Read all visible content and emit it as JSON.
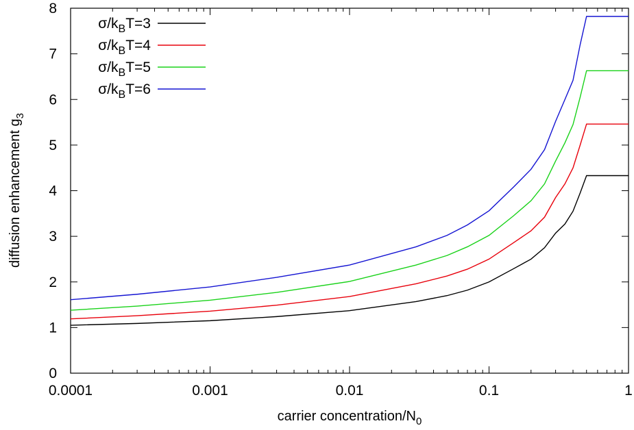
{
  "chart_data": {
    "type": "line",
    "xlabel": {
      "main": "carrier concentration/N",
      "sub": "0"
    },
    "ylabel": {
      "main": "diffusion enhancement g",
      "sub": "3"
    },
    "x_scale": "log",
    "xlim": [
      0.0001,
      1
    ],
    "ylim": [
      0,
      8
    ],
    "x_ticks": [
      {
        "value": 0.0001,
        "label": "0.0001"
      },
      {
        "value": 0.001,
        "label": "0.001"
      },
      {
        "value": 0.01,
        "label": "0.01"
      },
      {
        "value": 0.1,
        "label": "0.1"
      },
      {
        "value": 1,
        "label": "1"
      }
    ],
    "y_ticks": [
      {
        "value": 0,
        "label": "0"
      },
      {
        "value": 1,
        "label": "1"
      },
      {
        "value": 2,
        "label": "2"
      },
      {
        "value": 3,
        "label": "3"
      },
      {
        "value": 4,
        "label": "4"
      },
      {
        "value": 5,
        "label": "5"
      },
      {
        "value": 6,
        "label": "6"
      },
      {
        "value": 7,
        "label": "7"
      },
      {
        "value": 8,
        "label": "8"
      }
    ],
    "grid": false,
    "legend_position": "top-left",
    "series": [
      {
        "legend": {
          "pre": "σ/k",
          "sub": "B",
          "post": "T=3"
        },
        "color": "#000000",
        "x": [
          0.0001,
          0.0003,
          0.001,
          0.003,
          0.01,
          0.03,
          0.05,
          0.07,
          0.1,
          0.15,
          0.2,
          0.25,
          0.3,
          0.35,
          0.4,
          0.45,
          0.5,
          1
        ],
        "y": [
          1.05,
          1.09,
          1.15,
          1.24,
          1.37,
          1.57,
          1.7,
          1.82,
          2.0,
          2.29,
          2.5,
          2.75,
          3.07,
          3.27,
          3.55,
          3.95,
          4.33,
          4.33
        ]
      },
      {
        "legend": {
          "pre": "σ/k",
          "sub": "B",
          "post": "T=4"
        },
        "color": "#e8000b",
        "x": [
          0.0001,
          0.0003,
          0.001,
          0.003,
          0.01,
          0.03,
          0.05,
          0.07,
          0.1,
          0.15,
          0.2,
          0.25,
          0.3,
          0.35,
          0.4,
          0.45,
          0.5,
          1
        ],
        "y": [
          1.19,
          1.26,
          1.36,
          1.49,
          1.68,
          1.96,
          2.13,
          2.28,
          2.5,
          2.86,
          3.12,
          3.42,
          3.85,
          4.15,
          4.5,
          5.0,
          5.46,
          5.46
        ]
      },
      {
        "legend": {
          "pre": "σ/k",
          "sub": "B",
          "post": "T=5"
        },
        "color": "#19d219",
        "x": [
          0.0001,
          0.0003,
          0.001,
          0.003,
          0.01,
          0.03,
          0.05,
          0.07,
          0.1,
          0.15,
          0.2,
          0.25,
          0.3,
          0.35,
          0.4,
          0.45,
          0.5,
          1
        ],
        "y": [
          1.38,
          1.47,
          1.6,
          1.77,
          2.01,
          2.37,
          2.58,
          2.77,
          3.02,
          3.45,
          3.78,
          4.15,
          4.65,
          5.05,
          5.45,
          6.05,
          6.63,
          6.63
        ]
      },
      {
        "legend": {
          "pre": "σ/k",
          "sub": "B",
          "post": "T=6"
        },
        "color": "#1414d2",
        "x": [
          0.0001,
          0.0003,
          0.001,
          0.003,
          0.01,
          0.03,
          0.05,
          0.07,
          0.1,
          0.15,
          0.2,
          0.25,
          0.3,
          0.35,
          0.4,
          0.45,
          0.5,
          1
        ],
        "y": [
          1.61,
          1.73,
          1.89,
          2.1,
          2.37,
          2.77,
          3.02,
          3.25,
          3.56,
          4.08,
          4.47,
          4.9,
          5.52,
          6.0,
          6.42,
          7.2,
          7.82,
          7.82
        ]
      }
    ]
  }
}
